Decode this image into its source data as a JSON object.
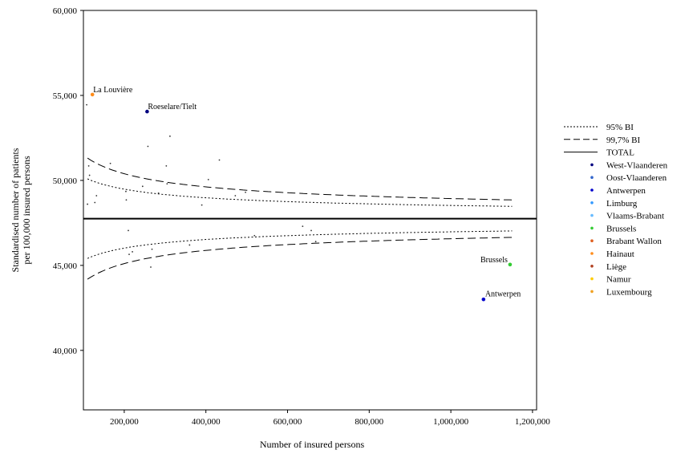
{
  "chart_data": {
    "type": "scatter",
    "title": "",
    "xlabel": "Number of insured persons",
    "ylabel": [
      "Standardised number of patients",
      "per 100,000 insured persons"
    ],
    "xlim": [
      100000,
      1210000
    ],
    "ylim": [
      36500,
      60000
    ],
    "x_ticks": [
      200000,
      400000,
      600000,
      800000,
      1000000,
      1200000
    ],
    "x_tick_labels": [
      "200,000",
      "400,000",
      "600,000",
      "800,000",
      "1,000,000",
      "1,200,000"
    ],
    "y_ticks": [
      40000,
      45000,
      50000,
      55000,
      60000
    ],
    "y_tick_labels": [
      "40,000",
      "45,000",
      "50,000",
      "55,000",
      "60,000"
    ],
    "grid": false,
    "total_line": 47750,
    "funnel": {
      "center": 47750,
      "x_range": [
        110000,
        1150000
      ],
      "k95": 776000,
      "k997": 1182000
    },
    "legend": {
      "position": "right",
      "lines": [
        {
          "label": "95% BI",
          "style": "dotted"
        },
        {
          "label": "99,7% BI",
          "style": "dashed"
        },
        {
          "label": "TOTAL",
          "style": "solid"
        }
      ],
      "regions": [
        {
          "label": "West-Vlaanderen",
          "color": "#00007f"
        },
        {
          "label": "Oost-Vlaanderen",
          "color": "#3366cc"
        },
        {
          "label": "Antwerpen",
          "color": "#0000cc"
        },
        {
          "label": "Limburg",
          "color": "#3399ff"
        },
        {
          "label": "Vlaams-Brabant",
          "color": "#66bbff"
        },
        {
          "label": "Brussels",
          "color": "#33cc33"
        },
        {
          "label": "Brabant Wallon",
          "color": "#e06020"
        },
        {
          "label": "Hainaut",
          "color": "#ff8c1a"
        },
        {
          "label": "Liège",
          "color": "#b04020"
        },
        {
          "label": "Namur",
          "color": "#ffcc00"
        },
        {
          "label": "Luxembourg",
          "color": "#f0a020"
        }
      ]
    },
    "highlighted_points": [
      {
        "label": "La Louvière",
        "x": 122000,
        "y": 55050,
        "color": "#ff8c1a"
      },
      {
        "label": "Roeselare/Tielt",
        "x": 256000,
        "y": 54050,
        "color": "#00007f"
      },
      {
        "label": "Brussels",
        "x": 1145000,
        "y": 45050,
        "color": "#33cc33"
      },
      {
        "label": "Antwerpen",
        "x": 1080000,
        "y": 43000,
        "color": "#0000cc"
      }
    ],
    "points": [
      {
        "x": 108000,
        "y": 54450
      },
      {
        "x": 113000,
        "y": 50850
      },
      {
        "x": 115000,
        "y": 50300
      },
      {
        "x": 110000,
        "y": 48600
      },
      {
        "x": 132000,
        "y": 49100
      },
      {
        "x": 128000,
        "y": 48700
      },
      {
        "x": 166000,
        "y": 51000
      },
      {
        "x": 204000,
        "y": 49350
      },
      {
        "x": 205000,
        "y": 48850
      },
      {
        "x": 210000,
        "y": 47050
      },
      {
        "x": 212000,
        "y": 45650
      },
      {
        "x": 220000,
        "y": 45800
      },
      {
        "x": 245000,
        "y": 49650
      },
      {
        "x": 258000,
        "y": 52000
      },
      {
        "x": 265000,
        "y": 44900
      },
      {
        "x": 268000,
        "y": 45950
      },
      {
        "x": 284000,
        "y": 49250
      },
      {
        "x": 303000,
        "y": 50850
      },
      {
        "x": 305000,
        "y": 49800
      },
      {
        "x": 312000,
        "y": 52600
      },
      {
        "x": 360000,
        "y": 46200
      },
      {
        "x": 390000,
        "y": 48550
      },
      {
        "x": 406000,
        "y": 50050
      },
      {
        "x": 433000,
        "y": 51200
      },
      {
        "x": 472000,
        "y": 49100
      },
      {
        "x": 497000,
        "y": 49300
      },
      {
        "x": 519000,
        "y": 46750
      },
      {
        "x": 637000,
        "y": 47300
      },
      {
        "x": 658000,
        "y": 47050
      },
      {
        "x": 669000,
        "y": 46400
      }
    ]
  }
}
